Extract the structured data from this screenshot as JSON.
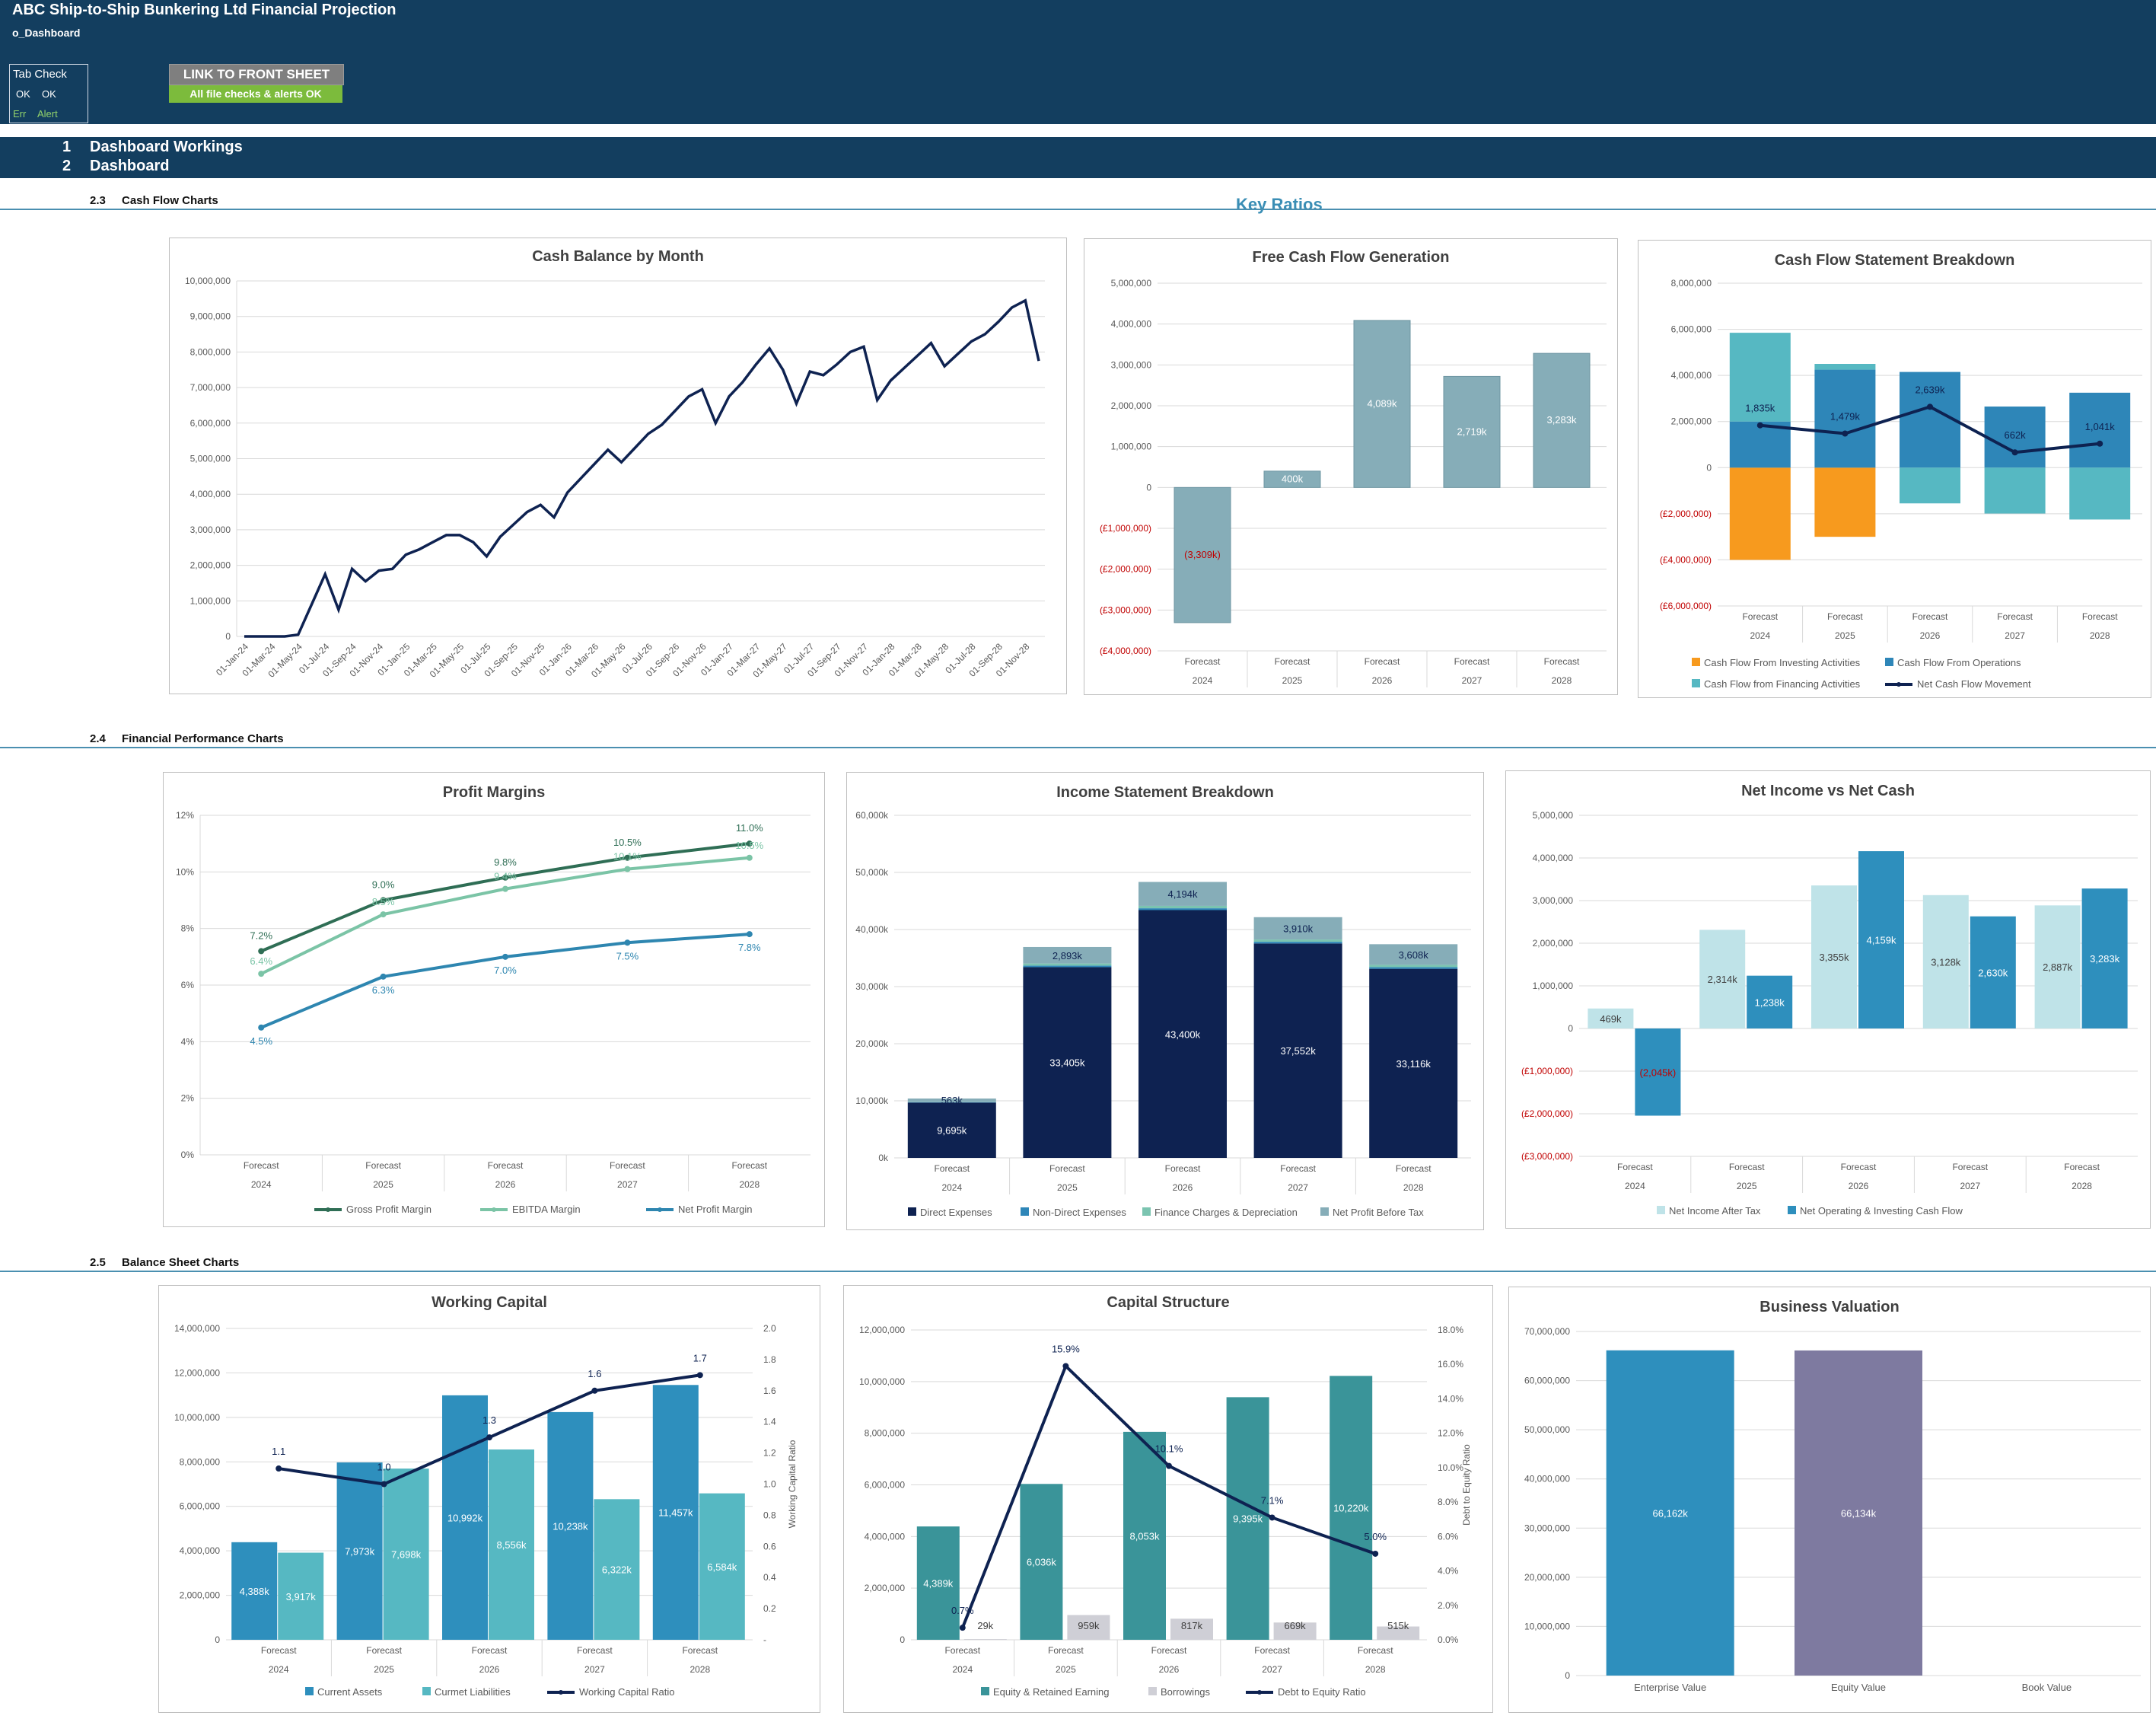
{
  "header": {
    "title": "ABC Ship-to-Ship Bunkering Ltd Financial Projection",
    "tab_name": "o_Dashboard",
    "tab_check": {
      "label": "Tab Check",
      "ok1": "OK",
      "ok2": "OK",
      "err": "Err",
      "alert": "Alert"
    },
    "link_button": "LINK TO FRONT SHEET",
    "checks_status": "All file checks & alerts OK"
  },
  "nav": [
    {
      "num": "1",
      "label": "Dashboard Workings"
    },
    {
      "num": "2",
      "label": "Dashboard"
    }
  ],
  "sections": {
    "cash_flow": {
      "num": "2.3",
      "label": "Cash Flow Charts"
    },
    "financial_performance": {
      "num": "2.4",
      "label": "Financial Performance Charts"
    },
    "balance_sheet": {
      "num": "2.5",
      "label": "Balance Sheet Charts"
    },
    "key_ratios": "Key Ratios"
  },
  "colors": {
    "header_bg": "#133e5f",
    "accent": "#3a8eb5",
    "link_btn": "#7f7f7f",
    "ok_green": "#7cbb3c",
    "navy": "#0e2251",
    "negative_red": "#c00000"
  },
  "chart_data": [
    {
      "id": "cash-balance",
      "type": "line",
      "title": "Cash Balance by Month",
      "ylim": [
        0,
        10000000
      ],
      "yticks": [
        "0",
        "1,000,000",
        "2,000,000",
        "3,000,000",
        "4,000,000",
        "5,000,000",
        "6,000,000",
        "7,000,000",
        "8,000,000",
        "9,000,000",
        "10,000,000"
      ],
      "x_tick_labels": [
        "01-Jan-24",
        "01-Mar-24",
        "01-May-24",
        "01-Jul-24",
        "01-Sep-24",
        "01-Nov-24",
        "01-Jan-25",
        "01-Mar-25",
        "01-May-25",
        "01-Jul-25",
        "01-Sep-25",
        "01-Nov-25",
        "01-Jan-26",
        "01-Mar-26",
        "01-May-26",
        "01-Jul-26",
        "01-Sep-26",
        "01-Nov-26",
        "01-Jan-27",
        "01-Mar-27",
        "01-May-27",
        "01-Jul-27",
        "01-Sep-27",
        "01-Nov-27",
        "01-Jan-28",
        "01-Mar-28",
        "01-May-28",
        "01-Jul-28",
        "01-Sep-28",
        "01-Nov-28"
      ],
      "values": [
        0,
        0,
        0,
        0,
        50000,
        900000,
        1750000,
        750000,
        1900000,
        1550000,
        1850000,
        1900000,
        2300000,
        2450000,
        2650000,
        2850000,
        2850000,
        2650000,
        2250000,
        2800000,
        3150000,
        3500000,
        3700000,
        3350000,
        4050000,
        4450000,
        4850000,
        5250000,
        4900000,
        5300000,
        5700000,
        5950000,
        6350000,
        6750000,
        6950000,
        6000000,
        6750000,
        7150000,
        7650000,
        8100000,
        7500000,
        6550000,
        7450000,
        7350000,
        7650000,
        8000000,
        8150000,
        6650000,
        7200000,
        7550000,
        7900000,
        8250000,
        7600000,
        7950000,
        8300000,
        8500000,
        8850000,
        9250000,
        9450000,
        7750000
      ],
      "color": "#0e2251"
    },
    {
      "id": "free-cash-flow",
      "type": "bar",
      "title": "Free Cash Flow Generation",
      "categories": [
        "2024",
        "2025",
        "2026",
        "2027",
        "2028"
      ],
      "category_prefix": "Forecast",
      "values": [
        -3309000,
        400000,
        4089000,
        2719000,
        3283000
      ],
      "labels": [
        "(3,309k)",
        "400k",
        "4,089k",
        "2,719k",
        "3,283k"
      ],
      "ylim": [
        -4000000,
        5000000
      ],
      "yticks": [
        "(£4,000,000)",
        "(£3,000,000)",
        "(£2,000,000)",
        "(£1,000,000)",
        "0",
        "1,000,000",
        "2,000,000",
        "3,000,000",
        "4,000,000",
        "5,000,000"
      ],
      "color": "#86adb8"
    },
    {
      "id": "cf-breakdown",
      "type": "bar",
      "title": "Cash Flow Statement Breakdown",
      "categories": [
        "2024",
        "2025",
        "2026",
        "2027",
        "2028"
      ],
      "category_prefix": "Forecast",
      "ylim": [
        -6000000,
        8000000
      ],
      "yticks": [
        "(£6,000,000)",
        "(£4,000,000)",
        "(£2,000,000)",
        "0",
        "2,000,000",
        "4,000,000",
        "6,000,000",
        "8,000,000"
      ],
      "series": [
        {
          "name": "Cash Flow From Investing Activities",
          "color": "#f79a1e",
          "values": [
            -4000000,
            -3000000,
            0,
            0,
            0
          ]
        },
        {
          "name": "Cash Flow From Operations",
          "color": "#2e86b8",
          "values": [
            2000000,
            4250000,
            4150000,
            2650000,
            3250000
          ]
        },
        {
          "name": "Cash Flow from Financing Activities",
          "color": "#56b8c2",
          "values": [
            3850000,
            250000,
            -1550000,
            -1990000,
            -2250000
          ]
        },
        {
          "name": "Net Cash Flow Movement",
          "color": "#0e2251",
          "values": [
            1835000,
            1479000,
            2639000,
            662000,
            1041000
          ],
          "labels": [
            "1,835k",
            "1,479k",
            "2,639k",
            "662k",
            "1,041k"
          ]
        }
      ]
    },
    {
      "id": "profit-margins",
      "type": "line",
      "title": "Profit Margins",
      "categories": [
        "2024",
        "2025",
        "2026",
        "2027",
        "2028"
      ],
      "category_prefix": "Forecast",
      "ylim": [
        0,
        12
      ],
      "yticks": [
        "0%",
        "2%",
        "4%",
        "6%",
        "8%",
        "10%",
        "12%"
      ],
      "series": [
        {
          "name": "Gross Profit Margin",
          "color": "#2f6e55",
          "values": [
            7.2,
            9.0,
            9.8,
            10.5,
            11.0
          ],
          "labels": [
            "7.2%",
            "9.0%",
            "9.8%",
            "10.5%",
            "11.0%"
          ]
        },
        {
          "name": "EBITDA Margin",
          "color": "#7bc4a6",
          "values": [
            6.4,
            8.5,
            9.4,
            10.1,
            10.5
          ],
          "labels": [
            "6.4%",
            "8.5%",
            "9.4%",
            "10.1%",
            "10.5%"
          ]
        },
        {
          "name": "Net Profit Margin",
          "color": "#2e86b0",
          "values": [
            4.5,
            6.3,
            7.0,
            7.5,
            7.8
          ],
          "labels": [
            "4.5%",
            "6.3%",
            "7.0%",
            "7.5%",
            "7.8%"
          ]
        }
      ]
    },
    {
      "id": "income-breakdown",
      "type": "bar",
      "title": "Income Statement Breakdown",
      "categories": [
        "2024",
        "2025",
        "2026",
        "2027",
        "2028"
      ],
      "category_prefix": "Forecast",
      "ylim": [
        0,
        60000
      ],
      "yticks": [
        "0k",
        "10,000k",
        "20,000k",
        "30,000k",
        "40,000k",
        "50,000k",
        "60,000k"
      ],
      "series": [
        {
          "name": "Direct Expenses",
          "color": "#0e2251",
          "values": [
            9695,
            33405,
            43400,
            37552,
            33116
          ],
          "labels": [
            "9,695k",
            "33,405k",
            "43,400k",
            "37,552k",
            "33,116k"
          ]
        },
        {
          "name": "Non-Direct Expenses",
          "color": "#2e86b8",
          "values": [
            80,
            280,
            320,
            300,
            280
          ],
          "labels": [
            "",
            "",
            "",
            "",
            ""
          ]
        },
        {
          "name": "Finance Charges & Depreciation",
          "color": "#7bc4b0",
          "values": [
            60,
            360,
            420,
            400,
            420
          ],
          "labels": [
            "",
            "",
            "",
            "",
            ""
          ]
        },
        {
          "name": "Net Profit Before Tax",
          "color": "#86adb8",
          "values": [
            563,
            2893,
            4194,
            3910,
            3608
          ],
          "labels": [
            "563k",
            "2,893k",
            "4,194k",
            "3,910k",
            "3,608k"
          ]
        }
      ]
    },
    {
      "id": "net-income-cash",
      "type": "bar",
      "title": "Net Income vs Net Cash",
      "categories": [
        "2024",
        "2025",
        "2026",
        "2027",
        "2028"
      ],
      "category_prefix": "Forecast",
      "ylim": [
        -3000000,
        5000000
      ],
      "yticks": [
        "(£3,000,000)",
        "(£2,000,000)",
        "(£1,000,000)",
        "0",
        "1,000,000",
        "2,000,000",
        "3,000,000",
        "4,000,000",
        "5,000,000"
      ],
      "series": [
        {
          "name": "Net Income After Tax",
          "color": "#bfe3e8",
          "values": [
            469000,
            2314000,
            3355000,
            3128000,
            2887000
          ],
          "labels": [
            "469k",
            "2,314k",
            "3,355k",
            "3,128k",
            "2,887k"
          ]
        },
        {
          "name": "Net Operating & Investing Cash Flow",
          "color": "#2e8fbd",
          "values": [
            -2045000,
            1238000,
            4159000,
            2630000,
            3283000
          ],
          "labels": [
            "(2,045k)",
            "1,238k",
            "4,159k",
            "2,630k",
            "3,283k"
          ]
        }
      ]
    },
    {
      "id": "working-capital",
      "type": "bar",
      "title": "Working Capital",
      "categories": [
        "2024",
        "2025",
        "2026",
        "2027",
        "2028"
      ],
      "category_prefix": "Forecast",
      "ylim": [
        0,
        14000000
      ],
      "yticks": [
        "0",
        "2,000,000",
        "4,000,000",
        "6,000,000",
        "8,000,000",
        "10,000,000",
        "12,000,000",
        "14,000,000"
      ],
      "y2lim": [
        0,
        2.0
      ],
      "y2ticks": [
        "-",
        "0.2",
        "0.4",
        "0.6",
        "0.8",
        "1.0",
        "1.2",
        "1.4",
        "1.6",
        "1.8",
        "2.0"
      ],
      "y2label": "Working Capital Ratio",
      "series": [
        {
          "name": "Current Assets",
          "color": "#2e8fbd",
          "values": [
            4388000,
            7973000,
            10992000,
            10238000,
            11457000
          ],
          "labels": [
            "4,388k",
            "7,973k",
            "10,992k",
            "10,238k",
            "11,457k"
          ]
        },
        {
          "name": "Curmet Liabilities",
          "color": "#56b8c2",
          "values": [
            3917000,
            7698000,
            8556000,
            6322000,
            6584000
          ],
          "labels": [
            "3,917k",
            "7,698k",
            "8,556k",
            "6,322k",
            "6,584k"
          ]
        },
        {
          "name": "Working Capital Ratio",
          "color": "#0e2251",
          "values": [
            1.1,
            1.0,
            1.3,
            1.6,
            1.7
          ],
          "labels": [
            "1.1",
            "1.0",
            "1.3",
            "1.6",
            "1.7"
          ],
          "axis": "y2"
        }
      ]
    },
    {
      "id": "capital-structure",
      "type": "bar",
      "title": "Capital Structure",
      "categories": [
        "2024",
        "2025",
        "2026",
        "2027",
        "2028"
      ],
      "category_prefix": "Forecast",
      "ylim": [
        0,
        12000000
      ],
      "yticks": [
        "0",
        "2,000,000",
        "4,000,000",
        "6,000,000",
        "8,000,000",
        "10,000,000",
        "12,000,000"
      ],
      "y2lim": [
        0,
        18
      ],
      "y2ticks": [
        "0.0%",
        "2.0%",
        "4.0%",
        "6.0%",
        "8.0%",
        "10.0%",
        "12.0%",
        "14.0%",
        "16.0%",
        "18.0%"
      ],
      "y2label": "Debt to Equity Ratio",
      "series": [
        {
          "name": "Equity & Retained Earning",
          "color": "#3a9499",
          "values": [
            4389000,
            6036000,
            8053000,
            9395000,
            10220000
          ],
          "labels": [
            "4,389k",
            "6,036k",
            "8,053k",
            "9,395k",
            "10,220k"
          ]
        },
        {
          "name": "Borrowings",
          "color": "#cfcfd6",
          "values": [
            29000,
            959000,
            817000,
            669000,
            515000
          ],
          "labels": [
            "29k",
            "959k",
            "817k",
            "669k",
            "515k"
          ]
        },
        {
          "name": "Debt to Equity Ratio",
          "color": "#0e2251",
          "values": [
            0.7,
            15.9,
            10.1,
            7.1,
            5.0
          ],
          "labels": [
            "0.7%",
            "15.9%",
            "10.1%",
            "7.1%",
            "5.0%"
          ],
          "axis": "y2"
        }
      ]
    },
    {
      "id": "business-valuation",
      "type": "bar",
      "title": "Business Valuation",
      "categories": [
        "Enterprise Value",
        "Equity Value",
        "Book Value"
      ],
      "values": [
        66162000,
        66134000,
        0
      ],
      "labels": [
        "66,162k",
        "66,134k",
        ""
      ],
      "colors": [
        "#2e8fbd",
        "#7e7aa0",
        "#bfbfbf"
      ],
      "ylim": [
        0,
        70000000
      ],
      "yticks": [
        "0",
        "10,000,000",
        "20,000,000",
        "30,000,000",
        "40,000,000",
        "50,000,000",
        "60,000,000",
        "70,000,000"
      ]
    }
  ]
}
